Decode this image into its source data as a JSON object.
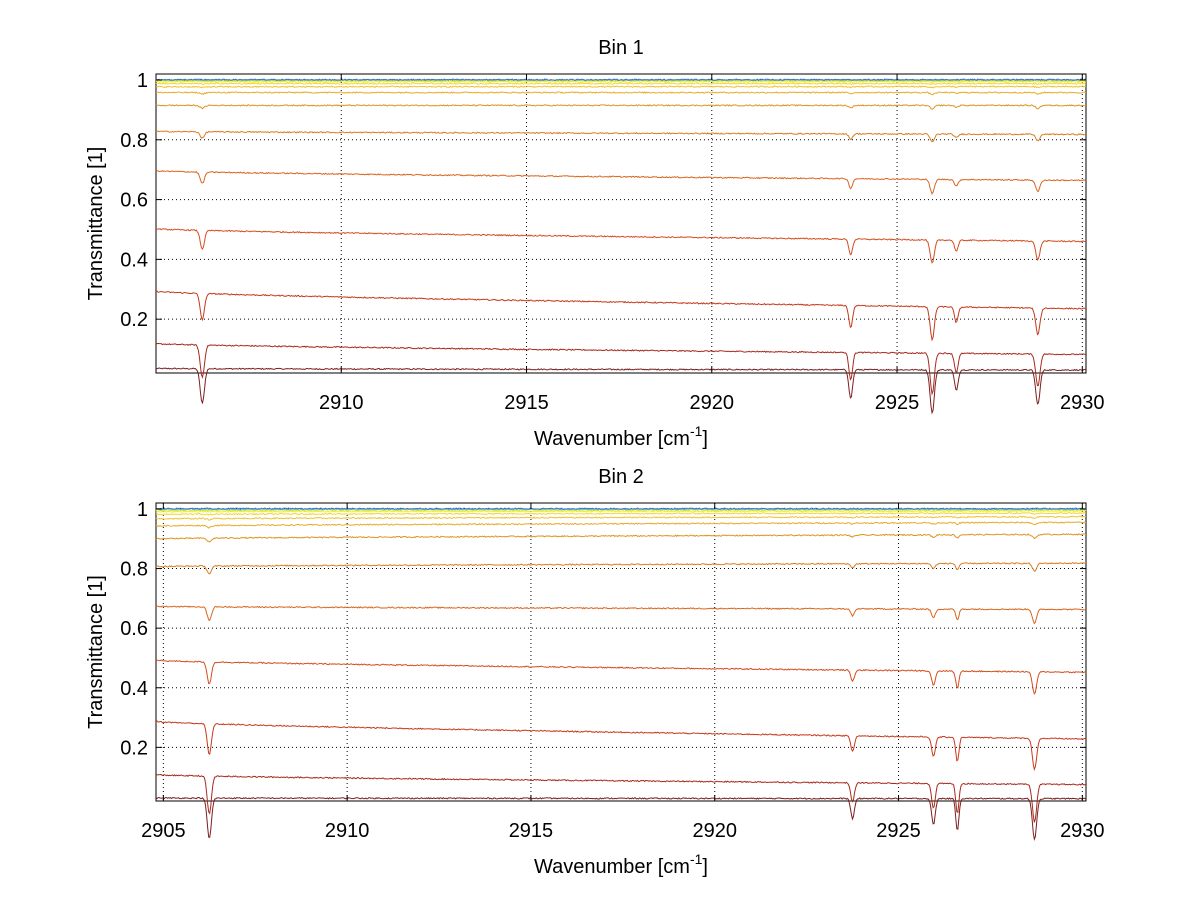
{
  "chart_data": [
    {
      "type": "line",
      "title": "Bin 1",
      "xlabel": "Wavenumber [cm",
      "xlabel_sup": "-1",
      "xlabel_end": "]",
      "ylabel": "Transmittance [1]",
      "xlim": [
        2905.0,
        2930.1
      ],
      "ylim": [
        0.02,
        1.02
      ],
      "xticks": [
        2910,
        2915,
        2920,
        2925,
        2930
      ],
      "yticks": [
        0.2,
        0.4,
        0.6,
        0.8,
        1
      ],
      "ytick_labels": [
        "0.2",
        "0.4",
        "0.6",
        "0.8",
        "1"
      ],
      "grid": true,
      "dips": [
        {
          "x": 2906.25,
          "depth": 0.12,
          "width": 0.08
        },
        {
          "x": 2923.75,
          "depth": 0.1,
          "width": 0.07
        },
        {
          "x": 2925.95,
          "depth": 0.15,
          "width": 0.08
        },
        {
          "x": 2926.6,
          "depth": 0.07,
          "width": 0.07
        },
        {
          "x": 2928.8,
          "depth": 0.12,
          "width": 0.08
        }
      ],
      "series": [
        {
          "color": "#7a1f1f",
          "start": 0.035,
          "end": 0.03
        },
        {
          "color": "#a82a1e",
          "start": 0.118,
          "end": 0.082
        },
        {
          "color": "#c53a1c",
          "start": 0.293,
          "end": 0.235
        },
        {
          "color": "#d44d1f",
          "start": 0.502,
          "end": 0.46
        },
        {
          "color": "#d9661f",
          "start": 0.696,
          "end": 0.664
        },
        {
          "color": "#da7d20",
          "start": 0.828,
          "end": 0.818
        },
        {
          "color": "#de9422",
          "start": 0.915,
          "end": 0.915
        },
        {
          "color": "#e6ab2a",
          "start": 0.958,
          "end": 0.958
        },
        {
          "color": "#efc22e",
          "start": 0.977,
          "end": 0.978
        },
        {
          "color": "#f5d62f",
          "start": 0.988,
          "end": 0.988
        },
        {
          "color": "#f8e830",
          "start": 0.994,
          "end": 0.994
        },
        {
          "color": "#c8e838",
          "start": 0.998,
          "end": 0.998
        },
        {
          "color": "#5cc7c8",
          "start": 1.0,
          "end": 1.0
        },
        {
          "color": "#3a6fd0",
          "start": 1.001,
          "end": 1.001
        }
      ]
    },
    {
      "type": "line",
      "title": "Bin 2",
      "xlabel": "Wavenumber [cm",
      "xlabel_sup": "-1",
      "xlabel_end": "]",
      "ylabel": "Transmittance [1]",
      "xlim": [
        2904.8,
        2930.1
      ],
      "ylim": [
        0.02,
        1.02
      ],
      "xticks": [
        2905,
        2910,
        2915,
        2920,
        2925,
        2930
      ],
      "yticks": [
        0.2,
        0.4,
        0.6,
        0.8,
        1
      ],
      "ytick_labels": [
        "0.2",
        "0.4",
        "0.6",
        "0.8",
        "1"
      ],
      "grid": true,
      "dips": [
        {
          "x": 2906.25,
          "depth": 0.14,
          "width": 0.08
        },
        {
          "x": 2923.75,
          "depth": 0.07,
          "width": 0.07
        },
        {
          "x": 2925.95,
          "depth": 0.09,
          "width": 0.07
        },
        {
          "x": 2926.6,
          "depth": 0.11,
          "width": 0.06
        },
        {
          "x": 2928.7,
          "depth": 0.14,
          "width": 0.08
        }
      ],
      "series": [
        {
          "color": "#7a1f1f",
          "start": 0.03,
          "end": 0.028
        },
        {
          "color": "#a82a1e",
          "start": 0.108,
          "end": 0.075
        },
        {
          "color": "#c53a1c",
          "start": 0.287,
          "end": 0.228
        },
        {
          "color": "#d44d1f",
          "start": 0.492,
          "end": 0.452
        },
        {
          "color": "#d9661f",
          "start": 0.673,
          "end": 0.663
        },
        {
          "color": "#da7d20",
          "start": 0.807,
          "end": 0.818
        },
        {
          "color": "#de9422",
          "start": 0.9,
          "end": 0.915
        },
        {
          "color": "#e6ab2a",
          "start": 0.943,
          "end": 0.955
        },
        {
          "color": "#efc22e",
          "start": 0.967,
          "end": 0.974
        },
        {
          "color": "#f5d62f",
          "start": 0.982,
          "end": 0.986
        },
        {
          "color": "#f8e830",
          "start": 0.991,
          "end": 0.993
        },
        {
          "color": "#c8e838",
          "start": 0.996,
          "end": 0.997
        },
        {
          "color": "#5cc7c8",
          "start": 0.999,
          "end": 0.999
        },
        {
          "color": "#3a6fd0",
          "start": 1.001,
          "end": 1.001
        }
      ]
    }
  ]
}
